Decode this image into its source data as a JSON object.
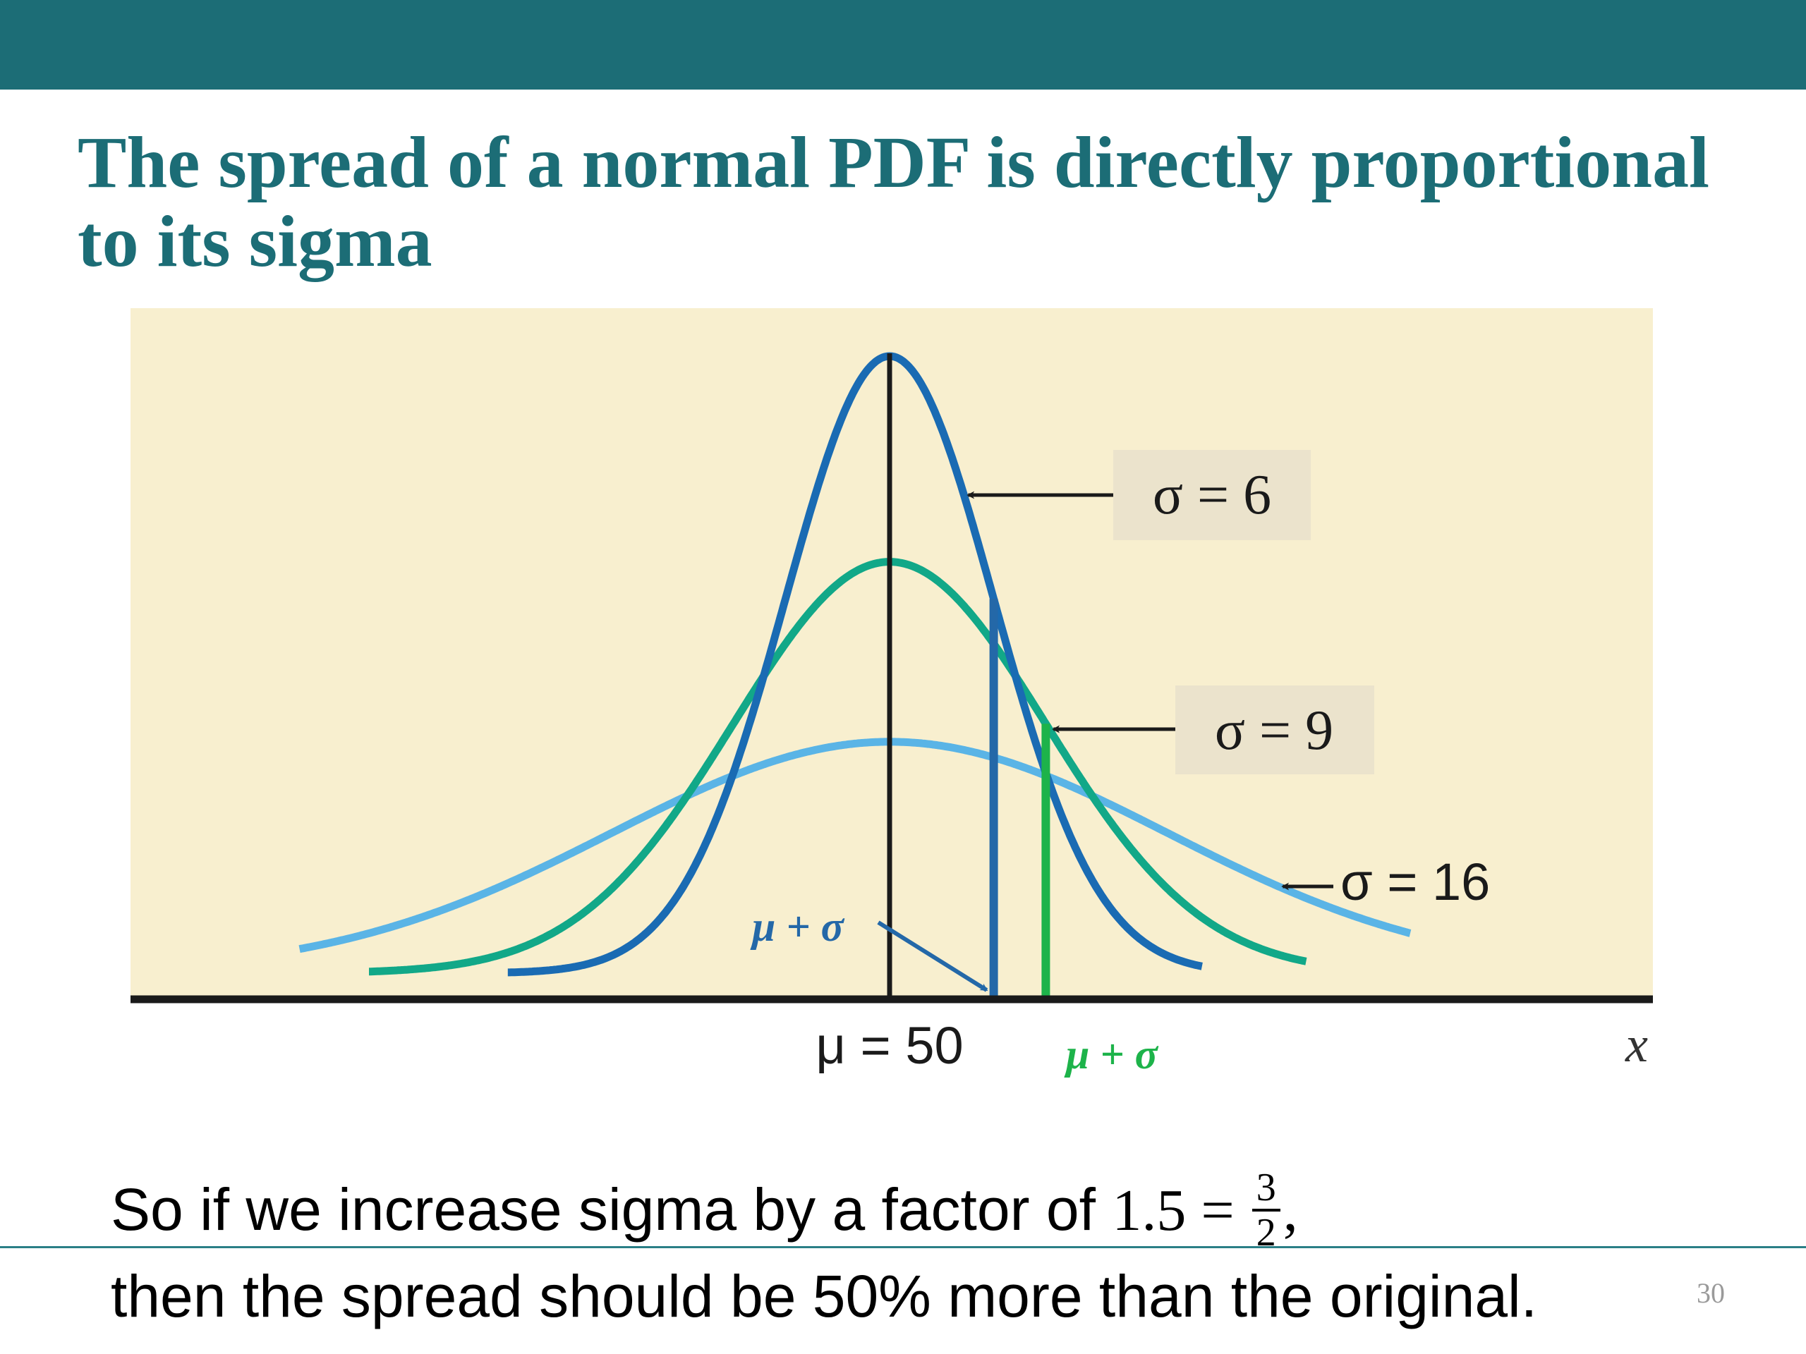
{
  "slide": {
    "title": "The spread of a normal PDF is directly proportional to its sigma",
    "page_number": "30"
  },
  "caption": {
    "line1_text": "So if we increase sigma by a factor of ",
    "line1_math": "1.5 = ",
    "frac_num": "3",
    "frac_den": "2",
    "line1_end": ",",
    "line2": "then the spread should be 50% more than the original."
  },
  "colors": {
    "header_bar": "#1c6d76",
    "title": "#1c6d76",
    "plot_background": "#f8efcf",
    "label_box": "#ebe3cc",
    "sigma6_curve": "#1a6bb3",
    "sigma9_curve": "#12a888",
    "sigma16_curve": "#5ab4e6",
    "mu_plus_sigma_blue": "#2468a8",
    "mu_plus_sigma_green": "#1db34a"
  },
  "chart_data": {
    "type": "line",
    "title": "",
    "xlabel": "x",
    "ylabel": "",
    "mean": 50,
    "mean_label": "μ = 50",
    "x_range": [
      14,
      86
    ],
    "series": [
      {
        "name": "σ = 6",
        "sigma": 6,
        "x_start": 28,
        "x_end": 68,
        "label": "σ = 6",
        "label_style": "boxed"
      },
      {
        "name": "σ = 9",
        "sigma": 9,
        "x_start": 20,
        "x_end": 74,
        "label": "σ = 9",
        "label_style": "boxed"
      },
      {
        "name": "σ = 16",
        "sigma": 16,
        "x_start": 16,
        "x_end": 80,
        "label": "σ = 16",
        "label_style": "plain"
      }
    ],
    "markers": [
      {
        "label": "μ + σ",
        "sigma": 6,
        "color": "blue"
      },
      {
        "label": "μ + σ",
        "sigma": 9,
        "color": "green"
      }
    ]
  }
}
